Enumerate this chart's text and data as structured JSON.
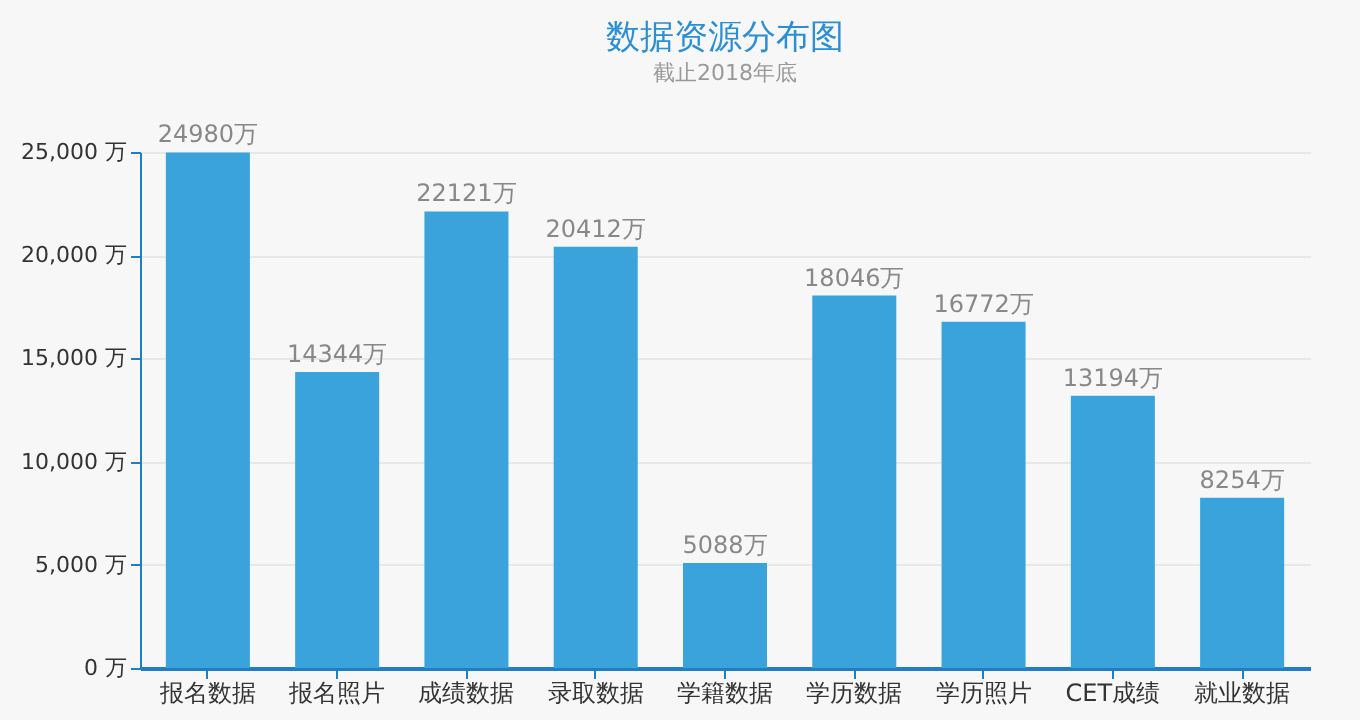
{
  "chart_data": {
    "type": "bar",
    "title": "数据资源分布图",
    "subtitle": "截止2018年底",
    "categories": [
      "报名数据",
      "报名照片",
      "成绩数据",
      "录取数据",
      "学籍数据",
      "学历数据",
      "学历照片",
      "CET成绩",
      "就业数据"
    ],
    "values": [
      24980,
      14344,
      22121,
      20412,
      5088,
      18046,
      16772,
      13194,
      8254
    ],
    "value_labels": [
      "24980万",
      "14344万",
      "22121万",
      "20412万",
      "5088万",
      "18046万",
      "16772万",
      "13194万",
      "8254万"
    ],
    "color": "#3aa3dc",
    "ylim": [
      0,
      25000
    ],
    "yticks": [
      {
        "value": 0,
        "label": "0 万"
      },
      {
        "value": 5000,
        "label": "5,000 万"
      },
      {
        "value": 10000,
        "label": "10,000 万"
      },
      {
        "value": 15000,
        "label": "15,000 万"
      },
      {
        "value": 20000,
        "label": "20,000 万"
      },
      {
        "value": 25000,
        "label": "25,000 万"
      }
    ],
    "grid": "y"
  }
}
